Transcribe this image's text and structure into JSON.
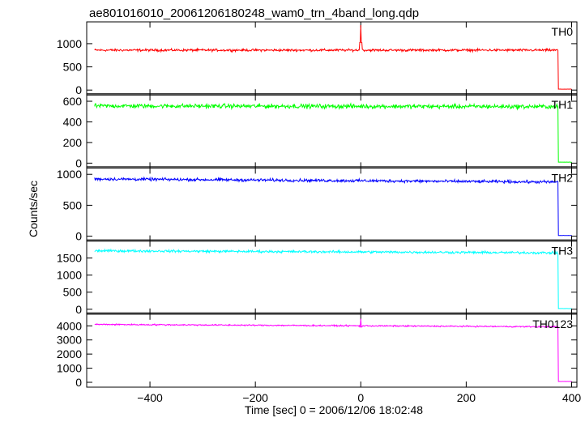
{
  "chart_data": {
    "type": "line",
    "title": "ae801016010_20061206180248_wam0_trn_4band_long.qdp",
    "xlabel": "Time [sec] 0 = 2006/12/06 18:02:48",
    "ylabel": "Counts/sec",
    "xlim": [
      -520,
      410
    ],
    "x_ticks": [
      -400,
      -200,
      0,
      200,
      400
    ],
    "x_tick_labels": [
      "−400",
      "−200",
      "0",
      "200",
      "400"
    ],
    "data_x_range": [
      -505,
      400
    ],
    "drop_time": 375,
    "grid": false,
    "panels": [
      {
        "name": "TH0",
        "color": "#ff0000",
        "ylim": [
          0,
          1400
        ],
        "y_ticks": [
          0,
          500,
          1000
        ],
        "baseline_start": 860,
        "baseline_end": 860,
        "noise": 22,
        "after_drop": 20,
        "spike": {
          "x": 0,
          "peak": 1400
        }
      },
      {
        "name": "TH1",
        "color": "#00ff00",
        "ylim": [
          0,
          630
        ],
        "y_ticks": [
          0,
          200,
          400,
          600
        ],
        "baseline_start": 555,
        "baseline_end": 548,
        "noise": 18,
        "after_drop": 10
      },
      {
        "name": "TH2",
        "color": "#0000ff",
        "ylim": [
          0,
          1050
        ],
        "y_ticks": [
          0,
          500,
          1000
        ],
        "baseline_start": 925,
        "baseline_end": 875,
        "noise": 20,
        "after_drop": 12
      },
      {
        "name": "TH3",
        "color": "#00ffff",
        "ylim": [
          0,
          1900
        ],
        "y_ticks": [
          0,
          500,
          1000,
          1500
        ],
        "baseline_start": 1710,
        "baseline_end": 1650,
        "noise": 30,
        "after_drop": 20
      },
      {
        "name": "TH0123",
        "color": "#ff00ff",
        "ylim": [
          0,
          4600
        ],
        "y_ticks": [
          0,
          1000,
          2000,
          3000,
          4000
        ],
        "baseline_start": 4100,
        "baseline_end": 3930,
        "noise": 40,
        "after_drop": 60,
        "spike": {
          "x": 0,
          "peak": 4500
        }
      }
    ]
  }
}
